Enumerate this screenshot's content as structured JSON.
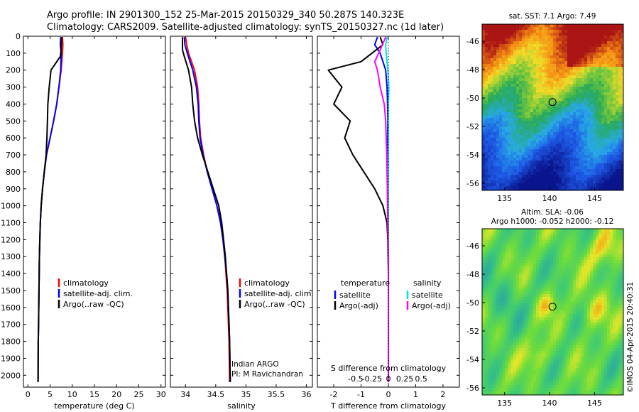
{
  "header": {
    "line1": "Argo profile: IN 2901300_152 25-Mar-2015 20150329_340 50.287S 140.323E",
    "line2": "Climatology: CARS2009. Satellite-adjusted climatology: synTS_20150327.nc (1d later)"
  },
  "colors": {
    "climatology": "#ff0000",
    "satellite": "#0000ff",
    "argo": "#000000",
    "t_satellite": "#0000ff",
    "s_satellite": "#00e5e5",
    "s_argo": "#ff00ff"
  },
  "chart_data": [
    {
      "type": "line",
      "panel": "temperature",
      "xlabel": "temperature (deg C)",
      "xlim": [
        -1,
        31
      ],
      "ylim": [
        2070,
        0
      ],
      "xticks": [
        "0",
        "5",
        "10",
        "15",
        "20",
        "25",
        "30"
      ],
      "yticks": [
        "0",
        "100",
        "200",
        "300",
        "400",
        "500",
        "600",
        "700",
        "800",
        "900",
        "1000",
        "1100",
        "1200",
        "1300",
        "1400",
        "1500",
        "1600",
        "1700",
        "1800",
        "1900",
        "2000"
      ],
      "legend": [
        "climatology",
        "satellite-adj. clim.",
        "Argo(..raw -QC)"
      ],
      "series": [
        {
          "name": "climatology",
          "x": [
            7.8,
            7.9,
            7.8,
            7.5,
            7.0,
            6.5,
            5.8,
            5.0,
            4.2,
            3.7,
            3.3,
            3.0,
            2.8,
            2.7,
            2.6,
            2.55,
            2.5,
            2.45,
            2.4,
            2.35,
            2.3
          ],
          "y": [
            5,
            50,
            100,
            200,
            300,
            400,
            500,
            600,
            700,
            800,
            900,
            1000,
            1100,
            1200,
            1300,
            1400,
            1500,
            1600,
            1700,
            1800,
            2040
          ]
        },
        {
          "name": "satellite-adj. clim.",
          "x": [
            7.4,
            7.3,
            7.5,
            7.4,
            7.0,
            6.5,
            5.8,
            5.0,
            4.2,
            3.7,
            3.3,
            3.0,
            2.8,
            2.7,
            2.6,
            2.55,
            2.5,
            2.45,
            2.4,
            2.35,
            2.3
          ],
          "y": [
            5,
            50,
            100,
            200,
            300,
            400,
            500,
            600,
            700,
            800,
            900,
            1000,
            1100,
            1200,
            1300,
            1400,
            1500,
            1600,
            1700,
            1800,
            2040
          ]
        },
        {
          "name": "Argo(..raw -QC)",
          "x": [
            7.6,
            7.5,
            7.3,
            5.2,
            4.8,
            4.5,
            4.4,
            4.3,
            4.1,
            3.7,
            3.3,
            3.0,
            2.8,
            2.7,
            2.6,
            2.55,
            2.5,
            2.45,
            2.4,
            2.35,
            2.3
          ],
          "y": [
            5,
            80,
            120,
            200,
            300,
            400,
            500,
            600,
            700,
            800,
            900,
            1000,
            1100,
            1200,
            1300,
            1400,
            1500,
            1600,
            1700,
            1800,
            2040
          ]
        }
      ]
    },
    {
      "type": "line",
      "panel": "salinity",
      "xlabel": "salinity",
      "xlim": [
        33.75,
        36.1
      ],
      "ylim": [
        2070,
        0
      ],
      "xticks": [
        "34",
        "34.5",
        "35",
        "35.5",
        "36"
      ],
      "legend": [
        "climatology",
        "satellite-adj. clim.",
        "Argo(..raw -QC)"
      ],
      "annotations": [
        "Indian ARGO",
        "PI: M Ravichandran"
      ],
      "series": [
        {
          "name": "climatology",
          "x": [
            34.0,
            34.02,
            34.05,
            34.15,
            34.2,
            34.22,
            34.23,
            34.25,
            34.3,
            34.36,
            34.44,
            34.52,
            34.58,
            34.62,
            34.65,
            34.67,
            34.69,
            34.7,
            34.71,
            34.72,
            34.73
          ],
          "y": [
            5,
            50,
            100,
            200,
            300,
            400,
            500,
            600,
            700,
            800,
            900,
            1000,
            1100,
            1200,
            1300,
            1400,
            1500,
            1600,
            1700,
            1800,
            2040
          ]
        },
        {
          "name": "satellite-adj. clim.",
          "x": [
            33.98,
            33.99,
            34.03,
            34.12,
            34.18,
            34.21,
            34.22,
            34.24,
            34.29,
            34.36,
            34.44,
            34.52,
            34.58,
            34.62,
            34.65,
            34.68,
            34.7,
            34.71,
            34.72,
            34.73,
            34.74
          ],
          "y": [
            5,
            50,
            100,
            200,
            300,
            400,
            500,
            600,
            700,
            800,
            900,
            1000,
            1100,
            1200,
            1300,
            1400,
            1500,
            1600,
            1700,
            1800,
            2040
          ]
        },
        {
          "name": "Argo(..raw -QC)",
          "x": [
            33.95,
            33.95,
            33.98,
            34.05,
            34.1,
            34.12,
            34.15,
            34.2,
            34.28,
            34.37,
            34.46,
            34.55,
            34.6,
            34.63,
            34.66,
            34.68,
            34.7,
            34.71,
            34.72,
            34.73,
            34.74
          ],
          "y": [
            5,
            80,
            120,
            200,
            300,
            400,
            500,
            600,
            700,
            800,
            900,
            1000,
            1100,
            1200,
            1300,
            1400,
            1500,
            1600,
            1700,
            1800,
            2040
          ]
        }
      ]
    },
    {
      "type": "line",
      "panel": "difference",
      "xlabel": "T difference from climatology",
      "xlabel2": "S difference from climatology",
      "xlim": [
        -2.6,
        2.6
      ],
      "ylim": [
        2070,
        0
      ],
      "xticks": [
        "-2",
        "-1",
        "0",
        "1",
        "2"
      ],
      "xticks_s": [
        "-0.5",
        "-0.25",
        "0",
        "0.25",
        "0.5"
      ],
      "legend_t_title": "temperature",
      "legend_s_title": "salinity",
      "legend": [
        "satellite",
        "Argo(-adj)",
        "satellite",
        "Argo(-adj)"
      ],
      "series": [
        {
          "name": "T satellite",
          "x": [
            -0.4,
            -0.5,
            -0.3,
            -0.1,
            -0.05,
            -0.03,
            -0.02,
            -0.03,
            -0.02,
            -0.02,
            -0.02,
            -0.01,
            -0.01,
            -0.01,
            0.0,
            0.0,
            0.0,
            0.0,
            0.0,
            0.0,
            0.0
          ],
          "y": [
            5,
            50,
            100,
            200,
            300,
            400,
            500,
            600,
            700,
            800,
            900,
            1000,
            1100,
            1200,
            1300,
            1400,
            1500,
            1600,
            1700,
            1800,
            2040
          ]
        },
        {
          "name": "T Argo(-adj)",
          "x": [
            -0.3,
            -0.2,
            -1.0,
            -2.2,
            -1.7,
            -2.0,
            -1.4,
            -1.6,
            -1.3,
            -0.9,
            -0.5,
            -0.2,
            -0.05,
            -0.02,
            -0.01,
            0.0,
            0.0,
            0.0,
            0.0,
            0.0,
            0.0
          ],
          "y": [
            5,
            50,
            150,
            200,
            300,
            400,
            500,
            600,
            700,
            800,
            900,
            1000,
            1100,
            1200,
            1300,
            1400,
            1500,
            1600,
            1700,
            1800,
            2040
          ]
        },
        {
          "name": "S satellite",
          "x": [
            -0.05,
            -0.1,
            -0.08,
            -0.02,
            0.02,
            0.0,
            0.0,
            0.0,
            0.0,
            0.0,
            0.0,
            0.0,
            0.0,
            0.0,
            0.0,
            0.0,
            0.0,
            0.0,
            0.0,
            0.0,
            0.0
          ],
          "y": [
            5,
            50,
            100,
            200,
            300,
            400,
            500,
            600,
            700,
            800,
            900,
            1000,
            1100,
            1200,
            1300,
            1400,
            1500,
            1600,
            1700,
            1800,
            2040
          ]
        },
        {
          "name": "S Argo(-adj)",
          "x": [
            -0.1,
            -0.3,
            -0.5,
            -0.4,
            -0.3,
            -0.15,
            -0.1,
            -0.08,
            -0.06,
            -0.05,
            -0.04,
            -0.03,
            -0.02,
            -0.01,
            0.0,
            0.0,
            0.0,
            0.0,
            0.0,
            0.0,
            0.0
          ],
          "y": [
            5,
            80,
            150,
            200,
            300,
            400,
            500,
            600,
            700,
            800,
            900,
            1000,
            1100,
            1200,
            1300,
            1400,
            1500,
            1600,
            1700,
            1800,
            2040
          ]
        }
      ]
    },
    {
      "type": "heatmap",
      "panel": "sst_map",
      "title": "sat. SST: 7.1  Argo: 7.49",
      "xticks": [
        "135",
        "140",
        "145"
      ],
      "yticks": [
        "-46",
        "-48",
        "-50",
        "-52",
        "-54",
        "-56"
      ],
      "xlim": [
        132.5,
        148.2
      ],
      "ylim": [
        -56.5,
        -44.8
      ],
      "marker": {
        "lon": 140.323,
        "lat": -50.287
      }
    },
    {
      "type": "heatmap",
      "panel": "sla_map",
      "title": "Altim. SLA: -0.06",
      "subtitle": "Argo h1000: -0.052  h2000: -0.12",
      "xticks": [
        "135",
        "140",
        "145"
      ],
      "yticks": [
        "-46",
        "-48",
        "-50",
        "-52",
        "-54",
        "-56"
      ],
      "xlim": [
        132.5,
        148.2
      ],
      "ylim": [
        -56.5,
        -44.8
      ],
      "marker": {
        "lon": 140.323,
        "lat": -50.287
      },
      "watermark": "©IMOS 04-Apr-2015 20:40:31"
    }
  ]
}
